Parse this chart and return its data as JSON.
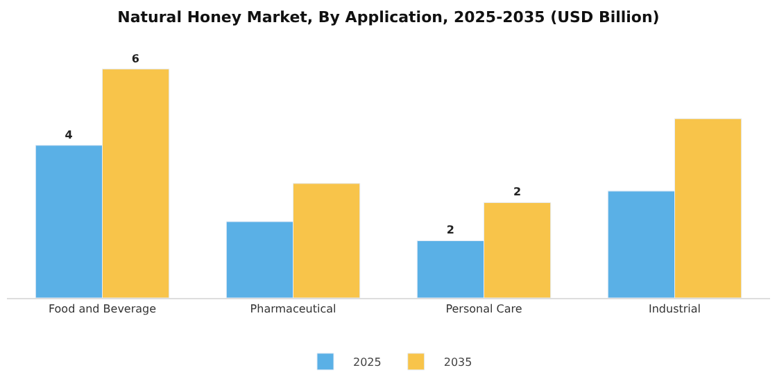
{
  "chart_data": {
    "type": "bar",
    "title": "Natural Honey Market, By Application, 2025-2035 (USD Billion)",
    "categories": [
      "Food and Beverage",
      "Pharmaceutical",
      "Personal Care",
      "Industrial"
    ],
    "series": [
      {
        "name": "2025",
        "color": "#5ab0e6",
        "values": [
          4.0,
          2.0,
          1.5,
          2.8
        ],
        "value_labels": [
          "4",
          null,
          "2",
          null
        ]
      },
      {
        "name": "2035",
        "color": "#f8c44a",
        "values": [
          6.0,
          3.0,
          2.5,
          4.7
        ],
        "value_labels": [
          "6",
          null,
          "2",
          null
        ]
      }
    ],
    "legend": "bottom"
  }
}
